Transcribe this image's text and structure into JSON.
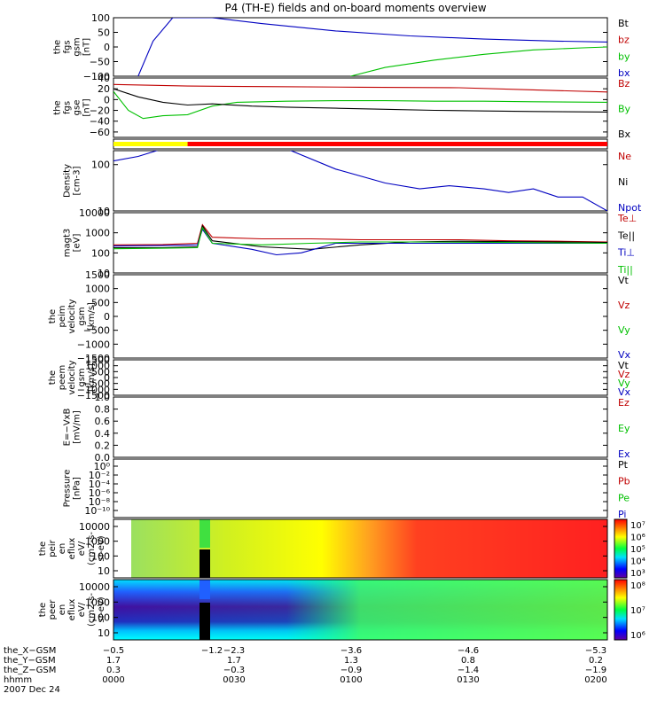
{
  "chart_data": {
    "type": "line",
    "title": "P4 (TH-E) fields and on-board moments overview",
    "date": "2007 Dec 24",
    "panels": [
      {
        "id": "fgs_gsm",
        "ylabel": [
          "the",
          "fgs",
          "gsm",
          "[nT]"
        ],
        "ylim": [
          -100,
          100
        ],
        "scale": "linear",
        "ticks": [
          {
            "v": 100,
            "l": "100"
          },
          {
            "v": 50,
            "l": "50"
          },
          {
            "v": 0,
            "l": "0"
          },
          {
            "v": -50,
            "l": "−50"
          },
          {
            "v": -100,
            "l": "−100"
          }
        ],
        "legend": [
          {
            "label": "Bt",
            "color": "#000000"
          },
          {
            "label": "bz",
            "color": "#c00000"
          },
          {
            "label": "by",
            "color": "#00c000"
          },
          {
            "label": "bx",
            "color": "#0000c0"
          }
        ],
        "series": [
          {
            "name": "bx",
            "color": "#0000c0",
            "t": [
              0.05,
              0.08,
              0.12,
              0.2,
              0.3,
              0.45,
              0.6,
              0.75,
              0.9,
              1.0
            ],
            "v": [
              -100,
              20,
              100,
              100,
              80,
              55,
              38,
              27,
              20,
              17
            ]
          },
          {
            "name": "by",
            "color": "#00c000",
            "t": [
              0.48,
              0.55,
              0.65,
              0.75,
              0.85,
              0.95,
              1.0
            ],
            "v": [
              -100,
              -70,
              -45,
              -25,
              -10,
              -3,
              0
            ]
          }
        ]
      },
      {
        "id": "fgs_gse",
        "ylabel": [
          "the",
          "fgs",
          "gse",
          "[nT]"
        ],
        "ylim": [
          -70,
          40
        ],
        "scale": "linear",
        "ticks": [
          {
            "v": 40,
            "l": "40"
          },
          {
            "v": 20,
            "l": "20"
          },
          {
            "v": 0,
            "l": "0"
          },
          {
            "v": -20,
            "l": "−20"
          },
          {
            "v": -40,
            "l": "−40"
          },
          {
            "v": -60,
            "l": "−60"
          }
        ],
        "legend": [
          {
            "label": "Bz",
            "color": "#c00000"
          },
          {
            "label": "By",
            "color": "#00c000"
          },
          {
            "label": "Bx",
            "color": "#000000"
          }
        ],
        "series": [
          {
            "name": "Bz",
            "color": "#c00000",
            "t": [
              0,
              0.15,
              0.3,
              0.5,
              0.7,
              0.85,
              1.0
            ],
            "v": [
              28,
              25,
              24,
              23,
              22,
              18,
              14
            ]
          },
          {
            "name": "By",
            "color": "#00c000",
            "t": [
              0,
              0.03,
              0.06,
              0.1,
              0.15,
              0.2,
              0.25,
              0.35,
              0.45,
              0.55,
              0.65,
              0.75,
              0.85,
              1.0
            ],
            "v": [
              15,
              -20,
              -35,
              -30,
              -28,
              -12,
              -5,
              -3,
              -2,
              -2,
              -3,
              -3,
              -4,
              -5
            ]
          },
          {
            "name": "Bx",
            "color": "#000000",
            "t": [
              0,
              0.05,
              0.1,
              0.15,
              0.2,
              0.28,
              0.35,
              0.45,
              0.55,
              0.65,
              0.75,
              0.85,
              1.0
            ],
            "v": [
              20,
              5,
              -5,
              -10,
              -8,
              -12,
              -14,
              -16,
              -18,
              -20,
              -21,
              -22,
              -23
            ]
          }
        ]
      },
      {
        "id": "mode_bar",
        "ylabel": [],
        "scale": "bar",
        "segments": [
          {
            "t0": 0,
            "t1": 0.15,
            "color": "#ffff00"
          },
          {
            "t0": 0.15,
            "t1": 1.0,
            "color": "#ff0000"
          }
        ]
      },
      {
        "id": "density",
        "ylabel": [
          "Density",
          "[cm-3]"
        ],
        "ylim": [
          10,
          200
        ],
        "scale": "log",
        "ticks": [
          {
            "v": 100,
            "l": "100"
          },
          {
            "v": 10,
            "l": "10"
          }
        ],
        "legend": [
          {
            "label": "Ne",
            "color": "#c00000"
          },
          {
            "label": "Ni",
            "color": "#000000"
          },
          {
            "label": "Npot",
            "color": "#0000c0"
          }
        ],
        "series": [
          {
            "name": "Npot",
            "color": "#0000c0",
            "t": [
              0,
              0.05,
              0.1,
              0.2,
              0.35,
              0.45,
              0.55,
              0.62,
              0.68,
              0.75,
              0.8,
              0.85,
              0.9,
              0.95,
              1.0
            ],
            "v": [
              120,
              150,
              220,
              220,
              220,
              80,
              40,
              30,
              35,
              30,
              25,
              30,
              20,
              20,
              10
            ]
          }
        ]
      },
      {
        "id": "magt3",
        "ylabel": [
          "magt3",
          "[eV]"
        ],
        "ylim": [
          10,
          10000
        ],
        "scale": "log",
        "ticks": [
          {
            "v": 10000,
            "l": "10000"
          },
          {
            "v": 1000,
            "l": "1000"
          },
          {
            "v": 100,
            "l": "100"
          },
          {
            "v": 10,
            "l": "10"
          }
        ],
        "legend": [
          {
            "label": "Te⊥",
            "color": "#c00000"
          },
          {
            "label": "Te||",
            "color": "#000000"
          },
          {
            "label": "Ti⊥",
            "color": "#0000c0"
          },
          {
            "label": "Ti||",
            "color": "#00c000"
          }
        ],
        "series": [
          {
            "name": "Te⊥",
            "color": "#c00000",
            "t": [
              0,
              0.1,
              0.17,
              0.18,
              0.2,
              0.3,
              0.4,
              0.5,
              0.6,
              0.7,
              0.8,
              0.9,
              1.0
            ],
            "v": [
              250,
              260,
              300,
              2500,
              600,
              500,
              500,
              450,
              450,
              450,
              400,
              380,
              350
            ]
          },
          {
            "name": "Te||",
            "color": "#000000",
            "t": [
              0,
              0.1,
              0.17,
              0.18,
              0.2,
              0.3,
              0.4,
              0.5,
              0.6,
              0.7,
              0.8,
              0.9,
              1.0
            ],
            "v": [
              180,
              180,
              200,
              2200,
              400,
              200,
              150,
              250,
              350,
              380,
              360,
              350,
              330
            ]
          },
          {
            "name": "Ti⊥",
            "color": "#0000c0",
            "t": [
              0,
              0.1,
              0.17,
              0.18,
              0.2,
              0.28,
              0.33,
              0.38,
              0.45,
              0.6,
              0.8,
              1.0
            ],
            "v": [
              220,
              230,
              250,
              1500,
              300,
              150,
              80,
              100,
              300,
              300,
              300,
              300
            ]
          },
          {
            "name": "Ti||",
            "color": "#00c000",
            "t": [
              0,
              0.1,
              0.17,
              0.18,
              0.2,
              0.3,
              0.4,
              0.5,
              0.6,
              0.8,
              1.0
            ],
            "v": [
              160,
              170,
              180,
              1800,
              300,
              250,
              300,
              350,
              350,
              330,
              300
            ]
          }
        ]
      },
      {
        "id": "peim_velocity",
        "ylabel": [
          "the",
          "peim",
          "velocity",
          "gsm",
          "[km/s]"
        ],
        "ylim": [
          -1500,
          1500
        ],
        "scale": "linear",
        "ticks": [
          {
            "v": 1500,
            "l": "1500"
          },
          {
            "v": 1000,
            "l": "1000"
          },
          {
            "v": 500,
            "l": "500"
          },
          {
            "v": 0,
            "l": "0"
          },
          {
            "v": -500,
            "l": "−500"
          },
          {
            "v": -1000,
            "l": "−1000"
          },
          {
            "v": -1500,
            "l": "−1500"
          }
        ],
        "legend": [
          {
            "label": "Vt",
            "color": "#000000"
          },
          {
            "label": "Vz",
            "color": "#c00000"
          },
          {
            "label": "Vy",
            "color": "#00c000"
          },
          {
            "label": "Vx",
            "color": "#0000c0"
          }
        ],
        "series": []
      },
      {
        "id": "peem_velocity",
        "ylabel": [
          "the",
          "peem",
          "velocity",
          "gsm",
          "[km/s]"
        ],
        "ylim": [
          -1500,
          1500
        ],
        "scale": "linear",
        "ticks": [
          {
            "v": 1500,
            "l": "1500"
          },
          {
            "v": 1000,
            "l": "1000"
          },
          {
            "v": 500,
            "l": "500"
          },
          {
            "v": 0,
            "l": "0"
          },
          {
            "v": -500,
            "l": "−500"
          },
          {
            "v": -1000,
            "l": "−1000"
          },
          {
            "v": -1500,
            "l": "−1500"
          }
        ],
        "legend": [
          {
            "label": "Vt",
            "color": "#000000"
          },
          {
            "label": "Vz",
            "color": "#c00000"
          },
          {
            "label": "Vy",
            "color": "#00c000"
          },
          {
            "label": "Vx",
            "color": "#0000c0"
          }
        ],
        "series": []
      },
      {
        "id": "efield",
        "ylabel": [
          "E=−VxB",
          "[mV/m]"
        ],
        "ylim": [
          0,
          1
        ],
        "scale": "linear",
        "ticks": [
          {
            "v": 1.0,
            "l": "1.0"
          },
          {
            "v": 0.8,
            "l": "0.8"
          },
          {
            "v": 0.6,
            "l": "0.6"
          },
          {
            "v": 0.4,
            "l": "0.4"
          },
          {
            "v": 0.2,
            "l": "0.2"
          },
          {
            "v": 0.0,
            "l": "0.0"
          }
        ],
        "legend": [
          {
            "label": "Ez",
            "color": "#c00000"
          },
          {
            "label": "Ey",
            "color": "#00c000"
          },
          {
            "label": "Ex",
            "color": "#0000c0"
          }
        ],
        "series": []
      },
      {
        "id": "pressure",
        "ylabel": [
          "Pressure",
          "[nPa]"
        ],
        "scale": "log-labels",
        "ticks": [
          {
            "l": "10⁰"
          },
          {
            "l": "10⁻²"
          },
          {
            "l": "10⁻⁴"
          },
          {
            "l": "10⁻⁶"
          },
          {
            "l": "10⁻⁸"
          },
          {
            "l": "10⁻¹⁰"
          }
        ],
        "legend": [
          {
            "label": "Pt",
            "color": "#000000"
          },
          {
            "label": "Pb",
            "color": "#c00000"
          },
          {
            "label": "Pe",
            "color": "#00c000"
          },
          {
            "label": "Pi",
            "color": "#0000c0"
          }
        ],
        "series": []
      },
      {
        "id": "peir_spec",
        "ylabel": [
          "the",
          "peir",
          "en",
          "eflux",
          "eV/",
          "(cm2-s-",
          "sr-eV)"
        ],
        "scale": "spectrogram",
        "ticks": [
          {
            "l": "10000"
          },
          {
            "l": "1000"
          },
          {
            "l": "100"
          },
          {
            "l": "10"
          }
        ],
        "colorbar": [
          "10⁷",
          "10⁶",
          "10⁵",
          "10⁴",
          "10³"
        ]
      },
      {
        "id": "peer_spec",
        "ylabel": [
          "the",
          "peer",
          "en",
          "eflux",
          "eV/",
          "(cm2-s-",
          "sr-eV)"
        ],
        "scale": "spectrogram",
        "ticks": [
          {
            "l": "10000"
          },
          {
            "l": "1000"
          },
          {
            "l": "100"
          },
          {
            "l": "10"
          }
        ],
        "colorbar": [
          "10⁸",
          "10⁷",
          "10⁶"
        ]
      }
    ],
    "x_axis": {
      "rows": [
        {
          "label": "the_X−GSM",
          "values": [
            "−0.5",
            "−1.2",
            "−2.3",
            "−3.6",
            "−4.6",
            "−5.3"
          ]
        },
        {
          "label": "the_Y−GSM",
          "values": [
            "1.7",
            "",
            "1.7",
            "1.3",
            "0.8",
            "0.2"
          ]
        },
        {
          "label": "the_Z−GSM",
          "values": [
            "0.3",
            "",
            "−0.3",
            "−0.9",
            "−1.4",
            "−1.9"
          ]
        },
        {
          "label": "hhmm",
          "values": [
            "0000",
            "",
            "0030",
            "0100",
            "0130",
            "0200"
          ]
        }
      ]
    }
  }
}
